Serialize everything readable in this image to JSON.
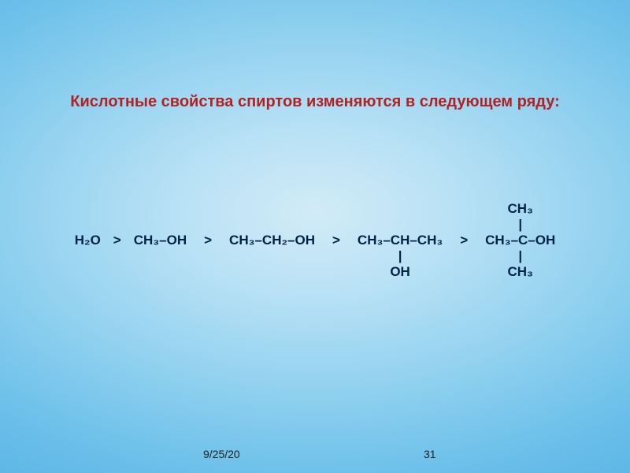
{
  "slide": {
    "title": "Кислотные свойства спиртов изменяются в следующем ряду:",
    "title_color": "#b22222",
    "text_color": "#002244",
    "background_gradient": [
      "#d2ebf7",
      "#b8e1f5",
      "#8fd0ef",
      "#6cc0ea",
      "#5ab5e4"
    ],
    "title_fontsize": 20,
    "formula_fontsize": 17,
    "footer_fontsize": 14
  },
  "formula": {
    "h2o": "H₂O",
    "gt": ">",
    "methanol": "CH₃–OH",
    "ethanol": "CH₃–CH₂–OH",
    "isopropanol_main": "CH₃–CH–CH₃",
    "isopropanol_bar": "|",
    "isopropanol_oh": "OH",
    "tert_ch3_top": "CH₃",
    "tert_bar": "|",
    "tert_main": "CH₃–C–OH",
    "tert_ch3_bot": "CH₃"
  },
  "footer": {
    "date": "9/25/20",
    "page": "31"
  }
}
